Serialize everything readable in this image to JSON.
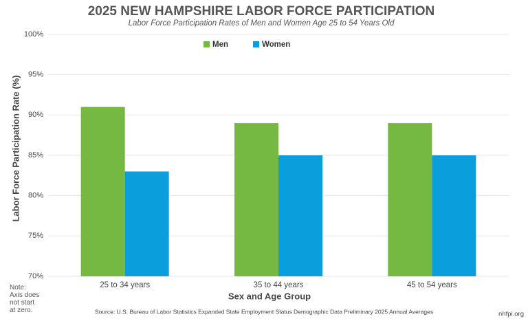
{
  "chart_data": {
    "type": "bar",
    "title": "2025 NEW HAMPSHIRE LABOR FORCE PARTICIPATION",
    "subtitle": "Labor Force Participation Rates of Men and Women Age 25 to 54 Years Old",
    "y_label": "Labor Force Participation Rate (%)",
    "x_label": "Sex and Age Group",
    "categories": [
      "25 to 34 years",
      "35 to 44 years",
      "45 to 54 years"
    ],
    "series": [
      {
        "name": "Men",
        "color": "#76b942",
        "values": [
          91,
          89,
          89
        ]
      },
      {
        "name": "Women",
        "color": "#0a9fdc",
        "values": [
          83,
          85,
          85
        ]
      }
    ],
    "ylim": [
      70,
      100
    ],
    "yticks": [
      {
        "value": 70,
        "label": "70%"
      },
      {
        "value": 75,
        "label": "75%"
      },
      {
        "value": 80,
        "label": "80%"
      },
      {
        "value": 85,
        "label": "85%"
      },
      {
        "value": 90,
        "label": "90%"
      },
      {
        "value": 95,
        "label": "95%"
      },
      {
        "value": 100,
        "label": "100%"
      }
    ],
    "grid": true,
    "legend": "top",
    "note": "Note: Axis does not start at zero.",
    "source": "Source: U.S. Bureau of Labor Statistics Expanded State Employment Status Demographic Data Preliminary 2025 Annual Averages",
    "credit": "nhfpi.org"
  }
}
